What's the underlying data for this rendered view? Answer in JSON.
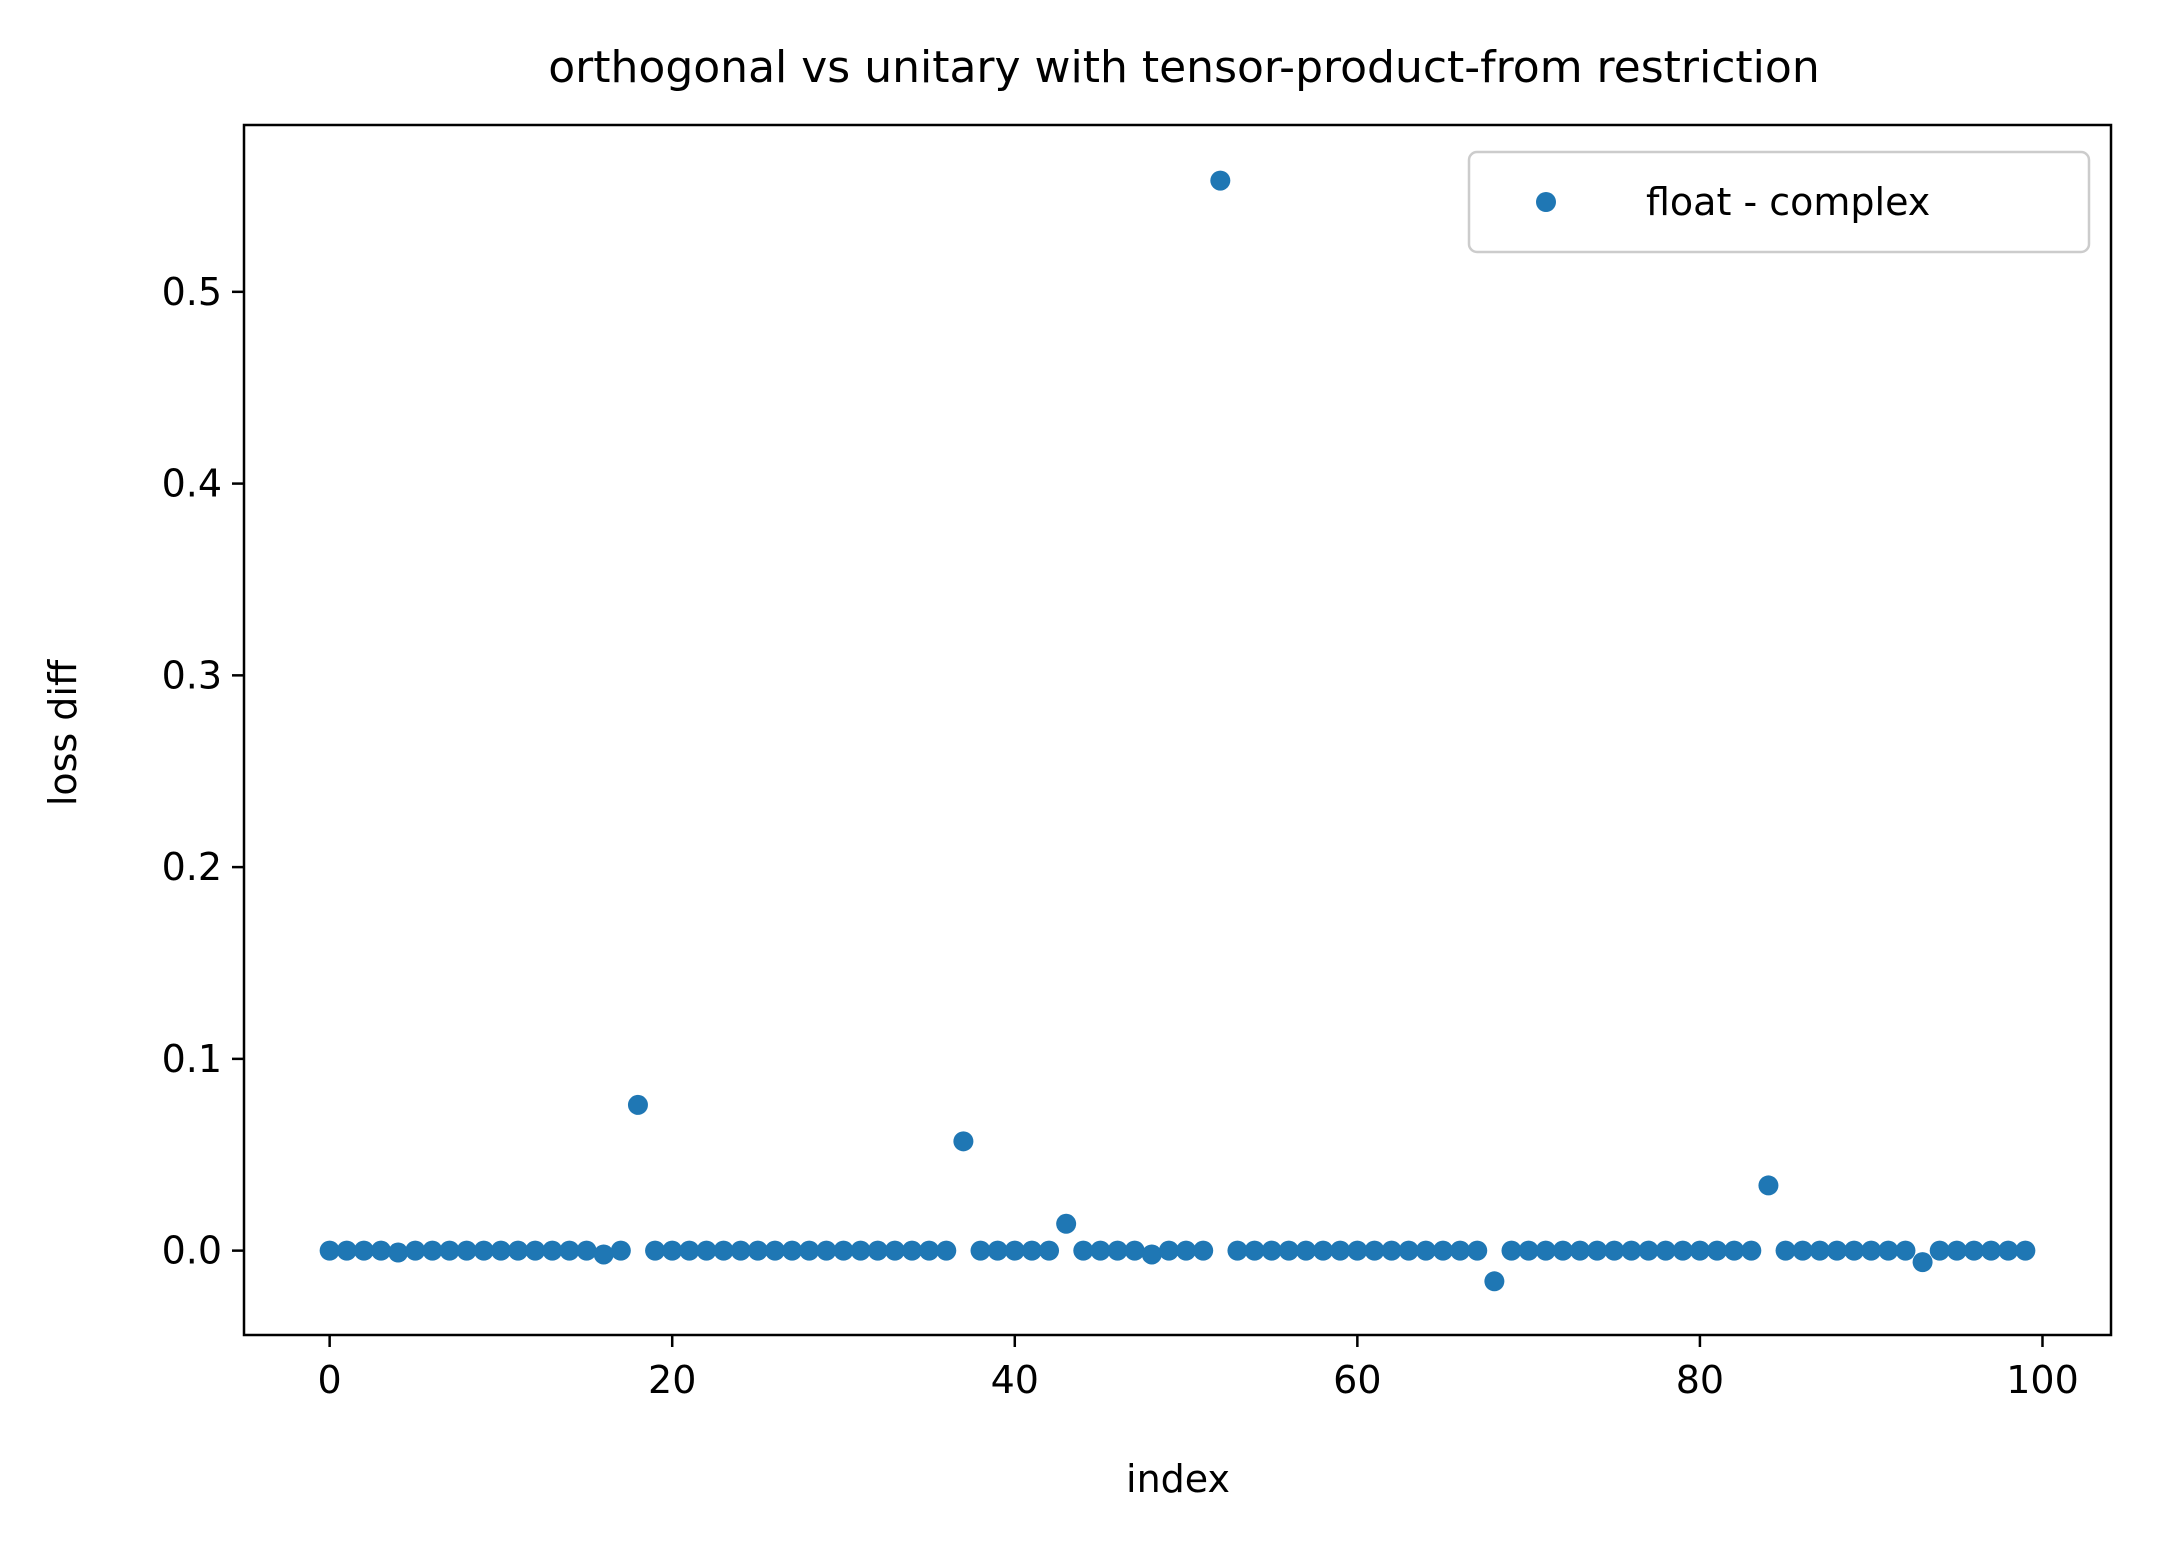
{
  "chart_data": {
    "type": "scatter",
    "title": "orthogonal vs unitary with tensor-product-from restriction",
    "xlabel": "index",
    "ylabel": "loss diff",
    "xlim": [
      -5,
      104
    ],
    "ylim": [
      -0.044,
      0.587
    ],
    "xticks": [
      0,
      20,
      40,
      60,
      80,
      100
    ],
    "xtick_labels": [
      "0",
      "20",
      "40",
      "60",
      "80",
      "100"
    ],
    "yticks": [
      0.0,
      0.1,
      0.2,
      0.3,
      0.4,
      0.5
    ],
    "ytick_labels": [
      "0.0",
      "0.1",
      "0.2",
      "0.3",
      "0.4",
      "0.5"
    ],
    "grid": false,
    "legend_position": "upper right",
    "series": [
      {
        "name": "float - complex",
        "color": "#1f77b4",
        "x": [
          0,
          1,
          2,
          3,
          4,
          5,
          6,
          7,
          8,
          9,
          10,
          11,
          12,
          13,
          14,
          15,
          16,
          17,
          18,
          19,
          20,
          21,
          22,
          23,
          24,
          25,
          26,
          27,
          28,
          29,
          30,
          31,
          32,
          33,
          34,
          35,
          36,
          37,
          38,
          39,
          40,
          41,
          42,
          43,
          44,
          45,
          46,
          47,
          48,
          49,
          50,
          51,
          52,
          53,
          54,
          55,
          56,
          57,
          58,
          59,
          60,
          61,
          62,
          63,
          64,
          65,
          66,
          67,
          68,
          69,
          70,
          71,
          72,
          73,
          74,
          75,
          76,
          77,
          78,
          79,
          80,
          81,
          82,
          83,
          84,
          85,
          86,
          87,
          88,
          89,
          90,
          91,
          92,
          93,
          94,
          95,
          96,
          97,
          98,
          99
        ],
        "y": [
          0,
          0,
          0,
          0,
          -0.001,
          0,
          0,
          0,
          0,
          0,
          0,
          0,
          0,
          0,
          0,
          0,
          -0.002,
          0,
          0.076,
          0,
          0,
          0,
          0,
          0,
          0,
          0,
          0,
          0,
          0,
          0,
          0,
          0,
          0,
          0,
          0,
          0,
          0,
          0.057,
          0,
          0,
          0,
          0,
          0,
          0.014,
          0,
          0,
          0,
          0,
          -0.002,
          0,
          0,
          0,
          0.558,
          0,
          0,
          0,
          0,
          0,
          0,
          0,
          0,
          0,
          0,
          0,
          0,
          0,
          0,
          0,
          -0.016,
          0,
          0,
          0,
          0,
          0,
          0,
          0,
          0,
          0,
          0,
          0,
          0,
          0,
          0,
          0,
          0.034,
          0,
          0,
          0,
          0,
          0,
          0,
          0,
          0,
          -0.006,
          0,
          0,
          0,
          0,
          0,
          0
        ]
      }
    ]
  }
}
